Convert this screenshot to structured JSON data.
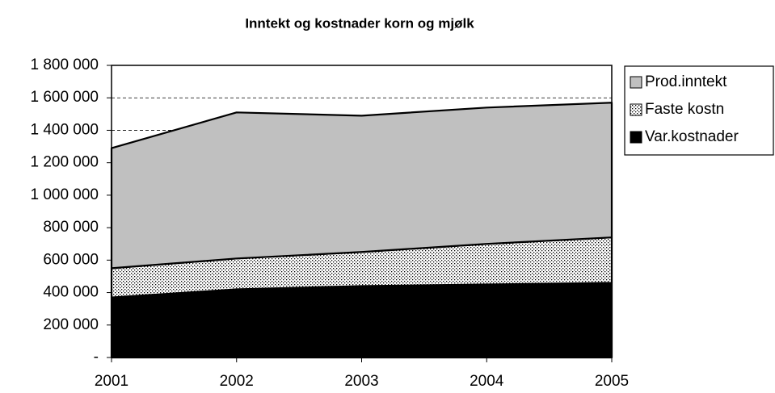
{
  "chart_data": {
    "type": "stacked_area",
    "title": "Inntekt og kostnader korn og mjølk",
    "categories": [
      "2001",
      "2002",
      "2003",
      "2004",
      "2005"
    ],
    "series": [
      {
        "name": "Var.kostnader",
        "color": "#000000",
        "values": [
          370000,
          420000,
          440000,
          450000,
          460000
        ]
      },
      {
        "name": "Faste kostn",
        "color": "#ffffff",
        "pattern": "dots",
        "values": [
          180000,
          190000,
          210000,
          250000,
          280000
        ]
      },
      {
        "name": "Prod.inntekt",
        "color": "#c0c0c0",
        "values": [
          740000,
          900000,
          840000,
          840000,
          830000
        ]
      }
    ],
    "ylim": [
      0,
      1800000
    ],
    "yticks": [
      {
        "value": 0,
        "label": "-"
      },
      {
        "value": 200000,
        "label": "200 000"
      },
      {
        "value": 400000,
        "label": "400 000"
      },
      {
        "value": 600000,
        "label": "600 000"
      },
      {
        "value": 800000,
        "label": "800 000"
      },
      {
        "value": 1000000,
        "label": "1 000 000"
      },
      {
        "value": 1200000,
        "label": "1 200 000"
      },
      {
        "value": 1400000,
        "label": "1 400 000"
      },
      {
        "value": 1600000,
        "label": "1 600 000"
      },
      {
        "value": 1800000,
        "label": "1 800 000"
      }
    ],
    "grid": true,
    "legend": "right"
  }
}
